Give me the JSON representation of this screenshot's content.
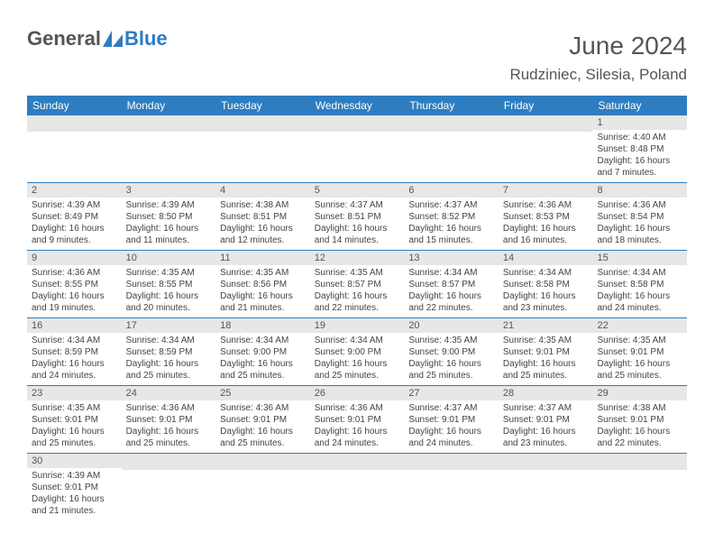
{
  "logo": {
    "general": "General",
    "blue": "Blue",
    "shape_fill": "#2d7dc0"
  },
  "header": {
    "month_title": "June 2024",
    "location": "Rudziniec, Silesia, Poland"
  },
  "colors": {
    "header_bg": "#2d7dc0",
    "header_text": "#ffffff",
    "date_band_bg": "#e7e7e7",
    "cell_text": "#444444",
    "title_text": "#555555"
  },
  "day_headers": [
    "Sunday",
    "Monday",
    "Tuesday",
    "Wednesday",
    "Thursday",
    "Friday",
    "Saturday"
  ],
  "weeks": [
    [
      {
        "date": "",
        "sunrise": "",
        "sunset": "",
        "daylight": ""
      },
      {
        "date": "",
        "sunrise": "",
        "sunset": "",
        "daylight": ""
      },
      {
        "date": "",
        "sunrise": "",
        "sunset": "",
        "daylight": ""
      },
      {
        "date": "",
        "sunrise": "",
        "sunset": "",
        "daylight": ""
      },
      {
        "date": "",
        "sunrise": "",
        "sunset": "",
        "daylight": ""
      },
      {
        "date": "",
        "sunrise": "",
        "sunset": "",
        "daylight": ""
      },
      {
        "date": "1",
        "sunrise": "Sunrise: 4:40 AM",
        "sunset": "Sunset: 8:48 PM",
        "daylight": "Daylight: 16 hours and 7 minutes."
      }
    ],
    [
      {
        "date": "2",
        "sunrise": "Sunrise: 4:39 AM",
        "sunset": "Sunset: 8:49 PM",
        "daylight": "Daylight: 16 hours and 9 minutes."
      },
      {
        "date": "3",
        "sunrise": "Sunrise: 4:39 AM",
        "sunset": "Sunset: 8:50 PM",
        "daylight": "Daylight: 16 hours and 11 minutes."
      },
      {
        "date": "4",
        "sunrise": "Sunrise: 4:38 AM",
        "sunset": "Sunset: 8:51 PM",
        "daylight": "Daylight: 16 hours and 12 minutes."
      },
      {
        "date": "5",
        "sunrise": "Sunrise: 4:37 AM",
        "sunset": "Sunset: 8:51 PM",
        "daylight": "Daylight: 16 hours and 14 minutes."
      },
      {
        "date": "6",
        "sunrise": "Sunrise: 4:37 AM",
        "sunset": "Sunset: 8:52 PM",
        "daylight": "Daylight: 16 hours and 15 minutes."
      },
      {
        "date": "7",
        "sunrise": "Sunrise: 4:36 AM",
        "sunset": "Sunset: 8:53 PM",
        "daylight": "Daylight: 16 hours and 16 minutes."
      },
      {
        "date": "8",
        "sunrise": "Sunrise: 4:36 AM",
        "sunset": "Sunset: 8:54 PM",
        "daylight": "Daylight: 16 hours and 18 minutes."
      }
    ],
    [
      {
        "date": "9",
        "sunrise": "Sunrise: 4:36 AM",
        "sunset": "Sunset: 8:55 PM",
        "daylight": "Daylight: 16 hours and 19 minutes."
      },
      {
        "date": "10",
        "sunrise": "Sunrise: 4:35 AM",
        "sunset": "Sunset: 8:55 PM",
        "daylight": "Daylight: 16 hours and 20 minutes."
      },
      {
        "date": "11",
        "sunrise": "Sunrise: 4:35 AM",
        "sunset": "Sunset: 8:56 PM",
        "daylight": "Daylight: 16 hours and 21 minutes."
      },
      {
        "date": "12",
        "sunrise": "Sunrise: 4:35 AM",
        "sunset": "Sunset: 8:57 PM",
        "daylight": "Daylight: 16 hours and 22 minutes."
      },
      {
        "date": "13",
        "sunrise": "Sunrise: 4:34 AM",
        "sunset": "Sunset: 8:57 PM",
        "daylight": "Daylight: 16 hours and 22 minutes."
      },
      {
        "date": "14",
        "sunrise": "Sunrise: 4:34 AM",
        "sunset": "Sunset: 8:58 PM",
        "daylight": "Daylight: 16 hours and 23 minutes."
      },
      {
        "date": "15",
        "sunrise": "Sunrise: 4:34 AM",
        "sunset": "Sunset: 8:58 PM",
        "daylight": "Daylight: 16 hours and 24 minutes."
      }
    ],
    [
      {
        "date": "16",
        "sunrise": "Sunrise: 4:34 AM",
        "sunset": "Sunset: 8:59 PM",
        "daylight": "Daylight: 16 hours and 24 minutes."
      },
      {
        "date": "17",
        "sunrise": "Sunrise: 4:34 AM",
        "sunset": "Sunset: 8:59 PM",
        "daylight": "Daylight: 16 hours and 25 minutes."
      },
      {
        "date": "18",
        "sunrise": "Sunrise: 4:34 AM",
        "sunset": "Sunset: 9:00 PM",
        "daylight": "Daylight: 16 hours and 25 minutes."
      },
      {
        "date": "19",
        "sunrise": "Sunrise: 4:34 AM",
        "sunset": "Sunset: 9:00 PM",
        "daylight": "Daylight: 16 hours and 25 minutes."
      },
      {
        "date": "20",
        "sunrise": "Sunrise: 4:35 AM",
        "sunset": "Sunset: 9:00 PM",
        "daylight": "Daylight: 16 hours and 25 minutes."
      },
      {
        "date": "21",
        "sunrise": "Sunrise: 4:35 AM",
        "sunset": "Sunset: 9:01 PM",
        "daylight": "Daylight: 16 hours and 25 minutes."
      },
      {
        "date": "22",
        "sunrise": "Sunrise: 4:35 AM",
        "sunset": "Sunset: 9:01 PM",
        "daylight": "Daylight: 16 hours and 25 minutes."
      }
    ],
    [
      {
        "date": "23",
        "sunrise": "Sunrise: 4:35 AM",
        "sunset": "Sunset: 9:01 PM",
        "daylight": "Daylight: 16 hours and 25 minutes."
      },
      {
        "date": "24",
        "sunrise": "Sunrise: 4:36 AM",
        "sunset": "Sunset: 9:01 PM",
        "daylight": "Daylight: 16 hours and 25 minutes."
      },
      {
        "date": "25",
        "sunrise": "Sunrise: 4:36 AM",
        "sunset": "Sunset: 9:01 PM",
        "daylight": "Daylight: 16 hours and 25 minutes."
      },
      {
        "date": "26",
        "sunrise": "Sunrise: 4:36 AM",
        "sunset": "Sunset: 9:01 PM",
        "daylight": "Daylight: 16 hours and 24 minutes."
      },
      {
        "date": "27",
        "sunrise": "Sunrise: 4:37 AM",
        "sunset": "Sunset: 9:01 PM",
        "daylight": "Daylight: 16 hours and 24 minutes."
      },
      {
        "date": "28",
        "sunrise": "Sunrise: 4:37 AM",
        "sunset": "Sunset: 9:01 PM",
        "daylight": "Daylight: 16 hours and 23 minutes."
      },
      {
        "date": "29",
        "sunrise": "Sunrise: 4:38 AM",
        "sunset": "Sunset: 9:01 PM",
        "daylight": "Daylight: 16 hours and 22 minutes."
      }
    ],
    [
      {
        "date": "30",
        "sunrise": "Sunrise: 4:39 AM",
        "sunset": "Sunset: 9:01 PM",
        "daylight": "Daylight: 16 hours and 21 minutes."
      },
      {
        "date": "",
        "sunrise": "",
        "sunset": "",
        "daylight": ""
      },
      {
        "date": "",
        "sunrise": "",
        "sunset": "",
        "daylight": ""
      },
      {
        "date": "",
        "sunrise": "",
        "sunset": "",
        "daylight": ""
      },
      {
        "date": "",
        "sunrise": "",
        "sunset": "",
        "daylight": ""
      },
      {
        "date": "",
        "sunrise": "",
        "sunset": "",
        "daylight": ""
      },
      {
        "date": "",
        "sunrise": "",
        "sunset": "",
        "daylight": ""
      }
    ]
  ]
}
